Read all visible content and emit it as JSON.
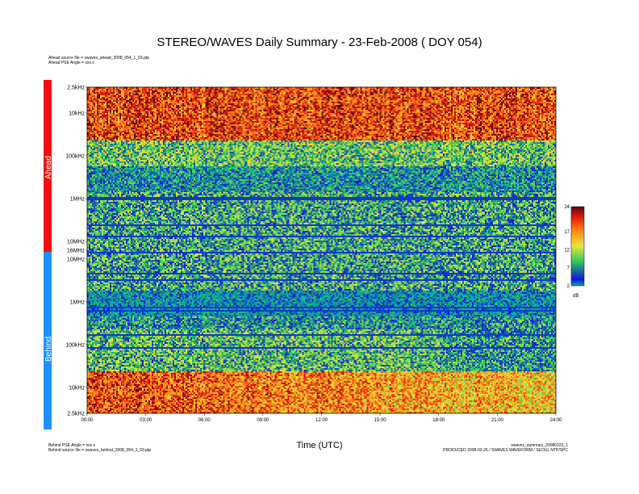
{
  "chart_data": {
    "type": "heatmap",
    "title": "STEREO/WAVES Daily Summary - 23-Feb-2008 ( DOY 054)",
    "xlabel": "Time (UTC)",
    "x_ticks": [
      "00:00",
      "03:00",
      "06:00",
      "09:00",
      "12:00",
      "15:00",
      "18:00",
      "21:00",
      "24:00"
    ],
    "ahead": {
      "label": "Ahead",
      "y_ticks": [
        "2.5kHz",
        "10kHz",
        "100kHz",
        "1MHz",
        "10MHz",
        "16MHz"
      ],
      "color": "#ee1111"
    },
    "behind": {
      "label": "Behind",
      "y_ticks": [
        "10MHz",
        "1MHz",
        "100kHz",
        "10kHz",
        "2.5kHz"
      ],
      "color": "#1e90ff"
    },
    "colorbar": {
      "ticks": [
        "24",
        "17",
        "12",
        "7",
        "2"
      ],
      "unit": "dB",
      "range": [
        2,
        24
      ]
    }
  },
  "meta": {
    "ahead_source": "Ahead source file = swaves_ahead_2008_054_1_03.ptp",
    "ahead_pse": "Ahead PSE Angle = xxx.x",
    "behind_pse": "Behind PSE Angle = xxx.x",
    "behind_source": "Behind source file = swaves_behind_2008_054_1_03.ptp",
    "summary_file": "swaves_summary_20080223_1",
    "produced": "PRODUCED 2008-02-26 / SWAVES WAVEFORM / SEOUL NTP/SPC"
  }
}
